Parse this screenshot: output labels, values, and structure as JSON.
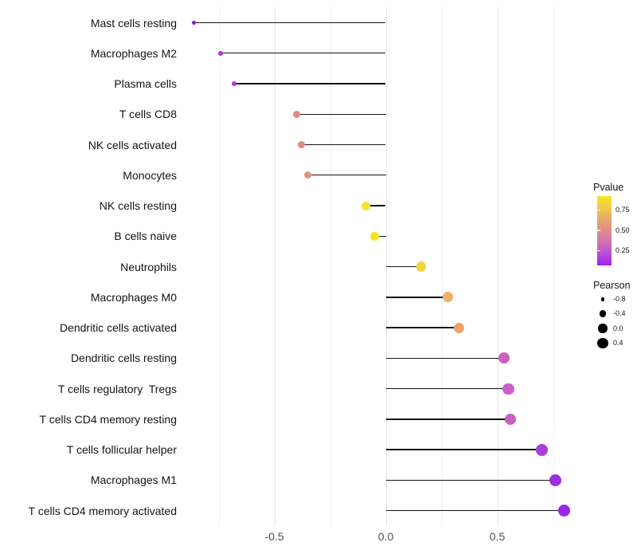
{
  "chart_data": {
    "type": "lollipop",
    "orientation": "horizontal",
    "title": "",
    "xlabel": "",
    "ylabel": "",
    "baseline": 0.0,
    "grid": "on",
    "x_axis": {
      "tick_labels": [
        "-0.5",
        "0.0",
        "0.5"
      ],
      "tick_values": [
        -0.5,
        0.0,
        0.5
      ],
      "minor_gridline_values": [
        -0.75,
        -0.25,
        0.25,
        0.75
      ],
      "range": [
        -0.89,
        0.9
      ]
    },
    "stem_color": "#141414",
    "points": [
      {
        "label": "Mast cells resting",
        "pearson": -0.86,
        "color": "#8922d6"
      },
      {
        "label": "Macrophages M2",
        "pearson": -0.74,
        "color": "#a63bd6"
      },
      {
        "label": "Plasma cells",
        "pearson": -0.68,
        "color": "#a53bd2"
      },
      {
        "label": "T cells CD8",
        "pearson": -0.4,
        "color": "#df8e7e"
      },
      {
        "label": "NK cells activated",
        "pearson": -0.38,
        "color": "#df8e7e"
      },
      {
        "label": "Monocytes",
        "pearson": -0.35,
        "color": "#e29478"
      },
      {
        "label": "NK cells resting",
        "pearson": -0.09,
        "color": "#f3e52c"
      },
      {
        "label": "B cells naive",
        "pearson": -0.05,
        "color": "#f4e424"
      },
      {
        "label": "Neutrophils",
        "pearson": 0.16,
        "color": "#f0d73e"
      },
      {
        "label": "Macrophages M0",
        "pearson": 0.28,
        "color": "#ecb167"
      },
      {
        "label": "Dendritic cells activated",
        "pearson": 0.33,
        "color": "#e9a46e"
      },
      {
        "label": "Dendritic cells resting",
        "pearson": 0.53,
        "color": "#cb61be"
      },
      {
        "label": "T cells regulatory  Tregs",
        "pearson": 0.55,
        "color": "#c75fc6"
      },
      {
        "label": "T cells CD4 memory resting",
        "pearson": 0.56,
        "color": "#c75fc6"
      },
      {
        "label": "T cells follicular helper",
        "pearson": 0.7,
        "color": "#ac3fdb"
      },
      {
        "label": "Macrophages M1",
        "pearson": 0.76,
        "color": "#9d2ee4"
      },
      {
        "label": "T cells CD4 memory activated",
        "pearson": 0.8,
        "color": "#9927e8"
      }
    ],
    "legend": {
      "pvalue": {
        "title": "Pvalue",
        "tick_labels": [
          "0.75",
          "0.50",
          "0.25"
        ],
        "gradient_bottom_to_top": [
          "#a020f0",
          "#bb4cda",
          "#d173b2",
          "#df8b8d",
          "#e9a76a",
          "#f2c94e",
          "#f9e721"
        ]
      },
      "pearson": {
        "title": "Pearson",
        "size_labels": [
          "-0.8",
          "-0.4",
          "0.0",
          "0.4"
        ],
        "dot_color": "#000000"
      }
    }
  }
}
